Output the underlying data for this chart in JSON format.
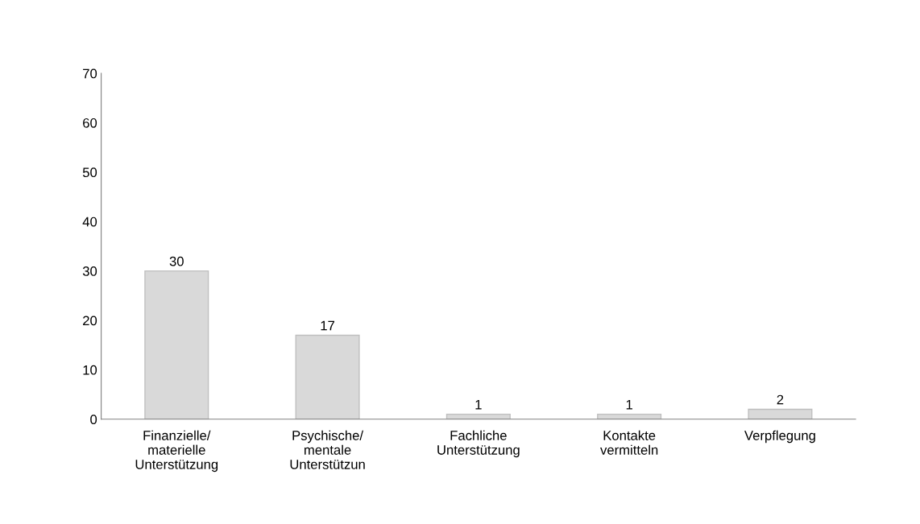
{
  "chart_data": {
    "type": "bar",
    "categories": [
      "Finanzielle/\nmaterielle\nUnterstützung",
      "Psychische/\nmentale\nUnterstützun",
      "Fachliche\nUnterstützung",
      "Kontakte\nvermitteln",
      "Verpflegung"
    ],
    "values": [
      30,
      17,
      1,
      1,
      2
    ],
    "color": "#d9d9d9",
    "ylim": [
      0,
      70
    ],
    "yticks": [
      0,
      10,
      20,
      30,
      40,
      50,
      60,
      70
    ],
    "data_labels": true,
    "grid": false
  }
}
